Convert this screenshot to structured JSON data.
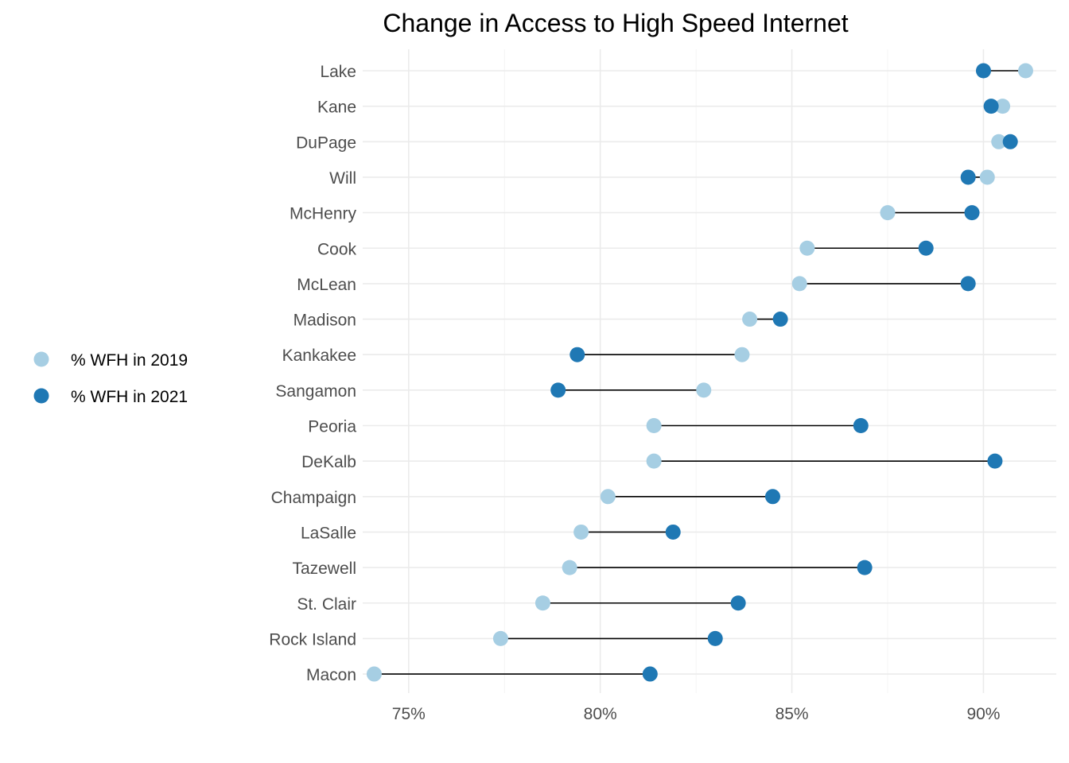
{
  "chart_data": {
    "type": "dumbbell",
    "title": "Change in Access to High Speed Internet",
    "xlabel": "",
    "ylabel": "",
    "xlim": [
      73.8,
      91.9
    ],
    "x_ticks": [
      {
        "value": 75,
        "label": "75%"
      },
      {
        "value": 80,
        "label": "80%"
      },
      {
        "value": 85,
        "label": "85%"
      },
      {
        "value": 90,
        "label": "90%"
      }
    ],
    "grid": true,
    "legend_position": "left",
    "series": [
      {
        "name": "% WFH in 2019",
        "color": "#a6cee3"
      },
      {
        "name": "% WFH in 2021",
        "color": "#1f78b4"
      }
    ],
    "categories": [
      "Lake",
      "Kane",
      "DuPage",
      "Will",
      "McHenry",
      "Cook",
      "McLean",
      "Madison",
      "Kankakee",
      "Sangamon",
      "Peoria",
      "DeKalb",
      "Champaign",
      "LaSalle",
      "Tazewell",
      "St. Clair",
      "Rock Island",
      "Macon"
    ],
    "values_2019": [
      91.1,
      90.5,
      90.4,
      90.1,
      87.5,
      85.4,
      85.2,
      83.9,
      83.7,
      82.7,
      81.4,
      81.4,
      80.2,
      79.5,
      79.2,
      78.5,
      77.4,
      74.1
    ],
    "values_2021": [
      90.0,
      90.2,
      90.7,
      89.6,
      89.7,
      88.5,
      89.6,
      84.7,
      79.4,
      78.9,
      86.8,
      90.3,
      84.5,
      81.9,
      86.9,
      83.6,
      83.0,
      81.3
    ]
  }
}
